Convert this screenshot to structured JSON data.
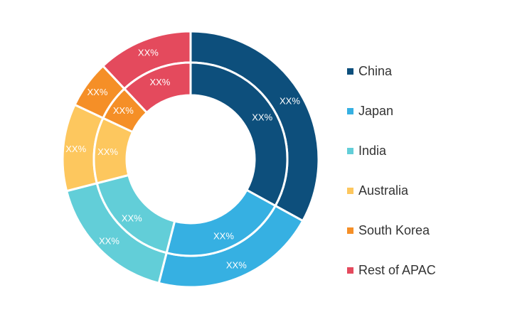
{
  "chart_data": {
    "type": "pie",
    "variant": "double-donut",
    "title": "",
    "categories": [
      "China",
      "Japan",
      "India",
      "Australia",
      "South Korea",
      "Rest of APAC"
    ],
    "colors": [
      "#0d4f7c",
      "#36b0e2",
      "#62ced8",
      "#fdc75e",
      "#f58f27",
      "#e44a5d"
    ],
    "series": [
      {
        "ring": "outer",
        "values": [
          33,
          21,
          17,
          11,
          6,
          12
        ],
        "labels": [
          "XX%",
          "XX%",
          "XX%",
          "XX%",
          "XX%",
          "XX%"
        ]
      },
      {
        "ring": "inner",
        "values": [
          33,
          21,
          17,
          11,
          6,
          12
        ],
        "labels": [
          "XX%",
          "XX%",
          "XX%",
          "XX%",
          "XX%",
          "XX%"
        ]
      }
    ],
    "legend": {
      "position": "right"
    }
  }
}
